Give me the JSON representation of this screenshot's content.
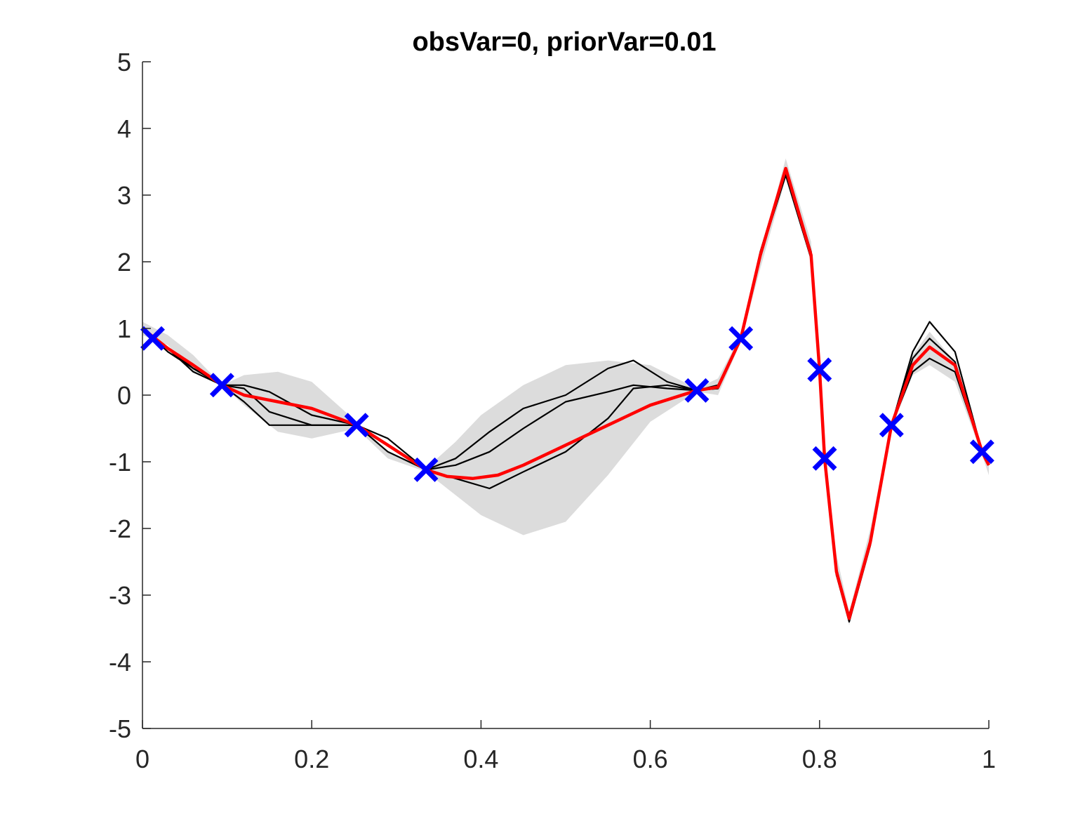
{
  "chart_data": {
    "type": "line",
    "title": "obsVar=0, priorVar=0.01",
    "xlabel": "",
    "ylabel": "",
    "xlim": [
      0,
      1
    ],
    "ylim": [
      -5,
      5
    ],
    "x_ticks": [
      "0",
      "0.2",
      "0.4",
      "0.6",
      "0.8",
      "1"
    ],
    "y_ticks": [
      "5",
      "4",
      "3",
      "2",
      "1",
      "0",
      "-1",
      "-2",
      "-3",
      "-4",
      "-5"
    ],
    "grid": false,
    "legend": null,
    "colors": {
      "mean": "#ff0000",
      "samples": "#000000",
      "band": "#dcdcdc",
      "observations": "#0000ff",
      "axis": "#262626"
    },
    "observations": {
      "marker": "x",
      "x": [
        0.012,
        0.094,
        0.253,
        0.335,
        0.655,
        0.707,
        0.8,
        0.806,
        0.885,
        0.992
      ],
      "y": [
        0.85,
        0.15,
        -0.45,
        -1.12,
        0.07,
        0.85,
        0.38,
        -0.95,
        -0.45,
        -0.85
      ]
    },
    "series": [
      {
        "role": "confidence-band",
        "x": [
          0.0,
          0.03,
          0.06,
          0.094,
          0.12,
          0.16,
          0.2,
          0.253,
          0.29,
          0.335,
          0.37,
          0.4,
          0.45,
          0.5,
          0.55,
          0.6,
          0.655,
          0.68,
          0.707,
          0.73,
          0.76,
          0.79,
          0.8,
          0.806,
          0.82,
          0.835,
          0.86,
          0.885,
          0.91,
          0.93,
          0.96,
          0.992,
          1.0
        ],
        "upper": [
          1.1,
          0.9,
          0.6,
          0.15,
          0.3,
          0.35,
          0.2,
          -0.4,
          -0.85,
          -1.1,
          -0.7,
          -0.3,
          0.15,
          0.45,
          0.52,
          0.45,
          0.1,
          0.25,
          0.9,
          2.1,
          3.55,
          2.3,
          0.45,
          -0.9,
          -2.4,
          -3.25,
          -2.0,
          -0.4,
          0.6,
          0.95,
          0.5,
          -0.8,
          -1.05
        ],
        "lower": [
          0.9,
          0.75,
          0.35,
          0.15,
          -0.15,
          -0.55,
          -0.65,
          -0.5,
          -0.95,
          -1.15,
          -1.5,
          -1.8,
          -2.1,
          -1.9,
          -1.2,
          -0.4,
          0.05,
          0.0,
          0.8,
          1.9,
          3.25,
          2.0,
          0.35,
          -1.0,
          -2.7,
          -3.45,
          -2.3,
          -0.5,
          0.3,
          0.45,
          0.2,
          -0.9,
          -1.2
        ]
      },
      {
        "role": "sample",
        "x": [
          0.0,
          0.03,
          0.06,
          0.094,
          0.12,
          0.15,
          0.2,
          0.253,
          0.29,
          0.335,
          0.37,
          0.41,
          0.45,
          0.5,
          0.55,
          0.58,
          0.62,
          0.655,
          0.68,
          0.707,
          0.73,
          0.76,
          0.79,
          0.8,
          0.806,
          0.82,
          0.835,
          0.86,
          0.885,
          0.91,
          0.93,
          0.96,
          0.992,
          1.0
        ],
        "y": [
          1.0,
          0.7,
          0.4,
          0.15,
          -0.1,
          -0.45,
          -0.45,
          -0.45,
          -0.85,
          -1.12,
          -1.25,
          -1.4,
          -1.15,
          -0.85,
          -0.35,
          0.1,
          0.15,
          0.07,
          0.15,
          0.85,
          2.15,
          3.4,
          2.15,
          0.4,
          -0.95,
          -2.6,
          -3.35,
          -2.2,
          -0.45,
          0.65,
          1.1,
          0.65,
          -0.85,
          -1.05
        ]
      },
      {
        "role": "sample",
        "x": [
          0.0,
          0.03,
          0.06,
          0.094,
          0.12,
          0.15,
          0.2,
          0.253,
          0.29,
          0.335,
          0.37,
          0.41,
          0.45,
          0.5,
          0.55,
          0.58,
          0.62,
          0.655,
          0.68,
          0.707,
          0.73,
          0.76,
          0.79,
          0.8,
          0.806,
          0.82,
          0.835,
          0.86,
          0.885,
          0.91,
          0.93,
          0.96,
          0.992,
          1.0
        ],
        "y": [
          1.0,
          0.7,
          0.35,
          0.15,
          0.15,
          0.05,
          -0.3,
          -0.45,
          -0.65,
          -1.12,
          -0.95,
          -0.55,
          -0.2,
          0.0,
          0.4,
          0.52,
          0.2,
          0.07,
          0.1,
          0.85,
          2.1,
          3.35,
          2.1,
          0.38,
          -0.95,
          -2.7,
          -3.4,
          -2.25,
          -0.45,
          0.55,
          0.85,
          0.5,
          -0.85,
          -1.05
        ]
      },
      {
        "role": "sample",
        "x": [
          0.0,
          0.03,
          0.06,
          0.094,
          0.12,
          0.15,
          0.2,
          0.253,
          0.29,
          0.335,
          0.37,
          0.41,
          0.45,
          0.5,
          0.55,
          0.58,
          0.62,
          0.655,
          0.68,
          0.707,
          0.73,
          0.76,
          0.79,
          0.8,
          0.806,
          0.82,
          0.835,
          0.86,
          0.885,
          0.91,
          0.93,
          0.96,
          0.992,
          1.0
        ],
        "y": [
          1.0,
          0.65,
          0.4,
          0.15,
          0.1,
          -0.25,
          -0.45,
          -0.45,
          -0.75,
          -1.12,
          -1.05,
          -0.85,
          -0.5,
          -0.1,
          0.05,
          0.15,
          0.1,
          0.07,
          0.1,
          0.85,
          2.1,
          3.3,
          2.05,
          0.38,
          -0.95,
          -2.7,
          -3.3,
          -2.2,
          -0.45,
          0.35,
          0.55,
          0.35,
          -0.85,
          -1.05
        ]
      },
      {
        "role": "mean",
        "x": [
          0.0,
          0.03,
          0.06,
          0.094,
          0.12,
          0.16,
          0.2,
          0.253,
          0.29,
          0.335,
          0.36,
          0.39,
          0.42,
          0.45,
          0.5,
          0.55,
          0.6,
          0.655,
          0.68,
          0.707,
          0.73,
          0.76,
          0.79,
          0.8,
          0.806,
          0.82,
          0.835,
          0.86,
          0.885,
          0.91,
          0.93,
          0.96,
          0.992,
          1.0
        ],
        "y": [
          1.0,
          0.7,
          0.45,
          0.15,
          0.0,
          -0.1,
          -0.2,
          -0.45,
          -0.75,
          -1.12,
          -1.22,
          -1.25,
          -1.2,
          -1.05,
          -0.75,
          -0.45,
          -0.15,
          0.07,
          0.12,
          0.85,
          2.1,
          3.4,
          2.1,
          0.38,
          -0.95,
          -2.65,
          -3.35,
          -2.2,
          -0.45,
          0.45,
          0.72,
          0.45,
          -0.85,
          -1.05
        ]
      }
    ]
  }
}
